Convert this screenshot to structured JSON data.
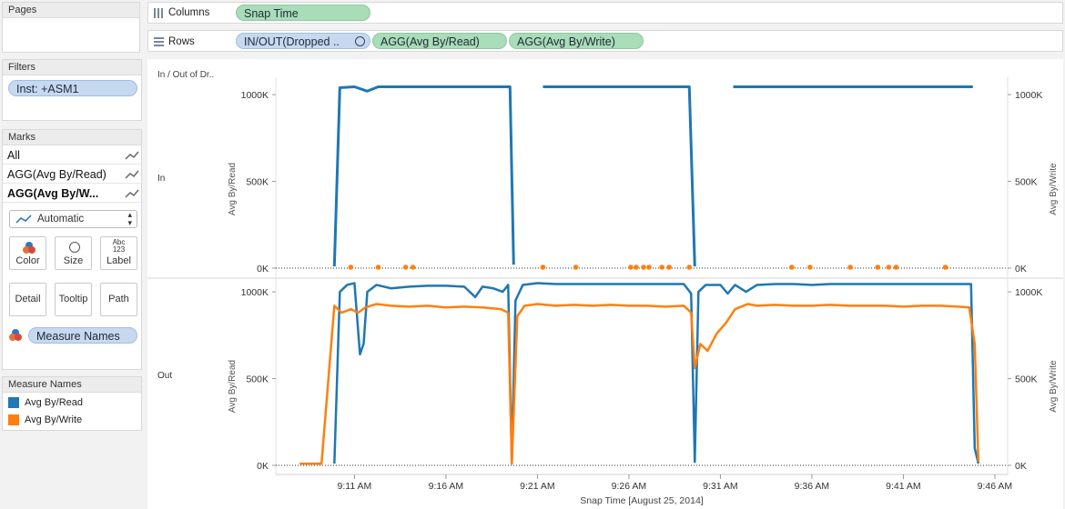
{
  "pages": {
    "title": "Pages"
  },
  "shelves": {
    "columns_label": "Columns",
    "rows_label": "Rows",
    "columns_pills": [
      "Snap Time"
    ],
    "rows_pills": [
      "IN/OUT(Dropped ..",
      "AGG(Avg By/Read)",
      "AGG(Avg By/Write)"
    ]
  },
  "filters": {
    "title": "Filters",
    "items": [
      "Inst: +ASM1"
    ]
  },
  "marks": {
    "title": "Marks",
    "rows": [
      "All",
      "AGG(Avg By/Read)",
      "AGG(Avg By/W..."
    ],
    "mark_type": "Automatic",
    "buttons": [
      "Color",
      "Size",
      "Label",
      "Detail",
      "Tooltip",
      "Path"
    ],
    "label_icon_text": "Abc\n123",
    "color_field": "Measure Names"
  },
  "legend": {
    "title": "Measure Names",
    "items": [
      {
        "name": "Avg By/Read",
        "color": "#1f77b4"
      },
      {
        "name": "Avg By/Write",
        "color": "#ff7f0e"
      }
    ]
  },
  "chart_data": {
    "type": "line",
    "header": "In / Out of Dr..",
    "xlabel": "Snap Time [August 25, 2014]",
    "x_ticks": [
      "9:11 AM",
      "9:16 AM",
      "9:21 AM",
      "9:26 AM",
      "9:31 AM",
      "9:36 AM",
      "9:41 AM",
      "9:46 AM"
    ],
    "x_tick_minutes": [
      11,
      16,
      21,
      26,
      31,
      36,
      41,
      46
    ],
    "xlim_minutes": [
      6.7,
      46.7
    ],
    "ylim": [
      0,
      1100000
    ],
    "y_ticks": [
      "0K",
      "500K",
      "1000K"
    ],
    "y_tick_values": [
      0,
      500000,
      1000000
    ],
    "left_axis_label": "Avg By/Read",
    "right_axis_label": "Avg By/Write",
    "panes": [
      {
        "row": "In",
        "series": [
          {
            "name": "Avg By/Read",
            "color": "#1f77b4",
            "segments": [
              [
                [
                  9.9,
                  10000
                ],
                [
                  10.2,
                  1040000
                ],
                [
                  11,
                  1045000
                ],
                [
                  11.7,
                  1020000
                ],
                [
                  12.3,
                  1045000
                ],
                [
                  19.5,
                  1045000
                ],
                [
                  19.7,
                  20000
                ]
              ],
              [
                [
                  21.3,
                  1045000
                ],
                [
                  29.3,
                  1045000
                ],
                [
                  29.6,
                  10000
                ]
              ],
              [
                [
                  31.7,
                  1045000
                ],
                [
                  44.8,
                  1045000
                ]
              ]
            ]
          },
          {
            "name": "Avg By/Write",
            "color": "#ff7f0e",
            "points_x": [
              10.8,
              12.3,
              13.8,
              14.2,
              21.3,
              23.1,
              26.1,
              26.4,
              26.8,
              27.1,
              27.8,
              28.2,
              29.3,
              34.9,
              35.9,
              38.1,
              39.6,
              40.2,
              40.6,
              43.3
            ]
          }
        ]
      },
      {
        "row": "Out",
        "series": [
          {
            "name": "Avg By/Read",
            "color": "#1f77b4",
            "points": [
              [
                9.9,
                10000
              ],
              [
                10.2,
                1000000
              ],
              [
                10.6,
                1040000
              ],
              [
                11,
                1050000
              ],
              [
                11.3,
                640000
              ],
              [
                11.5,
                700000
              ],
              [
                11.7,
                1000000
              ],
              [
                12.2,
                1040000
              ],
              [
                13,
                1020000
              ],
              [
                14,
                1030000
              ],
              [
                15,
                1035000
              ],
              [
                16,
                1035000
              ],
              [
                17,
                1030000
              ],
              [
                17.6,
                970000
              ],
              [
                18,
                1030000
              ],
              [
                18.6,
                1020000
              ],
              [
                19.1,
                1000000
              ],
              [
                19.4,
                1040000
              ],
              [
                19.6,
                20000
              ],
              [
                19.8,
                950000
              ],
              [
                20.2,
                1040000
              ],
              [
                21,
                1050000
              ],
              [
                22,
                1045000
              ],
              [
                23,
                1045000
              ],
              [
                24,
                1045000
              ],
              [
                25,
                1045000
              ],
              [
                26,
                1045000
              ],
              [
                27,
                1045000
              ],
              [
                28,
                1045000
              ],
              [
                29,
                1045000
              ],
              [
                29.4,
                990000
              ],
              [
                29.6,
                20000
              ],
              [
                29.8,
                1000000
              ],
              [
                30.2,
                1040000
              ],
              [
                31,
                1040000
              ],
              [
                31.4,
                990000
              ],
              [
                31.8,
                1040000
              ],
              [
                32.4,
                1000000
              ],
              [
                33,
                1040000
              ],
              [
                34,
                1045000
              ],
              [
                35,
                1045000
              ],
              [
                36,
                1040000
              ],
              [
                37,
                1045000
              ],
              [
                38,
                1045000
              ],
              [
                39,
                1045000
              ],
              [
                40,
                1045000
              ],
              [
                41,
                1045000
              ],
              [
                42,
                1045000
              ],
              [
                43,
                1045000
              ],
              [
                44,
                1045000
              ],
              [
                44.7,
                1045000
              ],
              [
                44.9,
                100000
              ],
              [
                45.1,
                10000
              ]
            ]
          },
          {
            "name": "Avg By/Write",
            "color": "#ff7f0e",
            "points": [
              [
                8,
                10000
              ],
              [
                9.2,
                10000
              ],
              [
                9.9,
                920000
              ],
              [
                10.3,
                880000
              ],
              [
                10.8,
                900000
              ],
              [
                11.2,
                880000
              ],
              [
                11.6,
                910000
              ],
              [
                12.2,
                930000
              ],
              [
                13,
                920000
              ],
              [
                14,
                915000
              ],
              [
                15,
                920000
              ],
              [
                16,
                910000
              ],
              [
                17,
                915000
              ],
              [
                18,
                910000
              ],
              [
                19,
                900000
              ],
              [
                19.4,
                880000
              ],
              [
                19.6,
                10000
              ],
              [
                19.9,
                860000
              ],
              [
                20.3,
                920000
              ],
              [
                21,
                930000
              ],
              [
                22,
                920000
              ],
              [
                23,
                925000
              ],
              [
                24,
                920000
              ],
              [
                25,
                925000
              ],
              [
                26,
                920000
              ],
              [
                27,
                920000
              ],
              [
                28,
                915000
              ],
              [
                29,
                920000
              ],
              [
                29.4,
                880000
              ],
              [
                29.6,
                560000
              ],
              [
                29.9,
                700000
              ],
              [
                30.3,
                660000
              ],
              [
                30.8,
                760000
              ],
              [
                31.3,
                820000
              ],
              [
                31.8,
                900000
              ],
              [
                32.5,
                930000
              ],
              [
                33,
                920000
              ],
              [
                34,
                925000
              ],
              [
                35,
                920000
              ],
              [
                36,
                920000
              ],
              [
                37,
                925000
              ],
              [
                38,
                920000
              ],
              [
                39,
                920000
              ],
              [
                40,
                920000
              ],
              [
                41,
                915000
              ],
              [
                42,
                920000
              ],
              [
                43,
                920000
              ],
              [
                44,
                915000
              ],
              [
                44.6,
                910000
              ],
              [
                44.9,
                700000
              ],
              [
                45.1,
                20000
              ]
            ]
          }
        ]
      }
    ]
  }
}
